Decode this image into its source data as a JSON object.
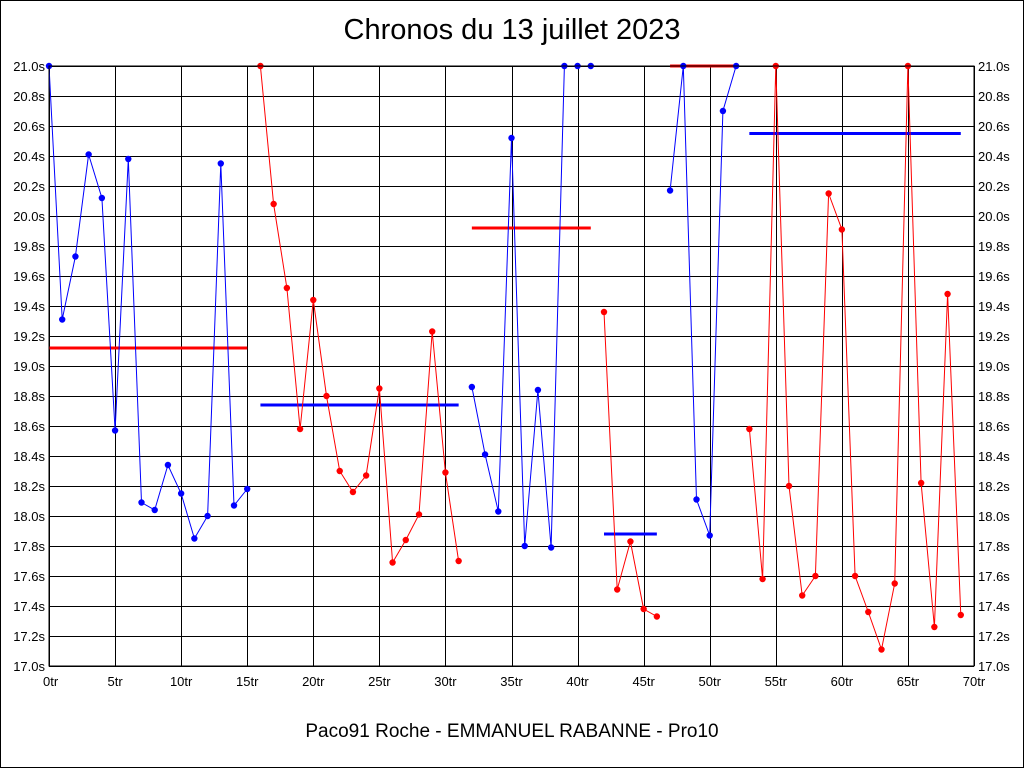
{
  "chart_data": {
    "type": "line",
    "title": "Chronos du 13 juillet 2023",
    "footer": "Paco91 Roche - EMMANUEL RABANNE - Pro10",
    "xlim": [
      0,
      70
    ],
    "ylim": [
      17.0,
      21.0
    ],
    "x_ticks": [
      0,
      5,
      10,
      15,
      20,
      25,
      30,
      35,
      40,
      45,
      50,
      55,
      60,
      65,
      70
    ],
    "x_tick_labels": [
      "0tr",
      "5tr",
      "10tr",
      "15tr",
      "20tr",
      "25tr",
      "30tr",
      "35tr",
      "40tr",
      "45tr",
      "50tr",
      "55tr",
      "60tr",
      "65tr",
      "70tr"
    ],
    "y_ticks": [
      17.0,
      17.2,
      17.4,
      17.6,
      17.8,
      18.0,
      18.2,
      18.4,
      18.6,
      18.8,
      19.0,
      19.2,
      19.4,
      19.6,
      19.8,
      20.0,
      20.2,
      20.4,
      20.6,
      20.8,
      21.0
    ],
    "y_tick_labels": [
      "17.0s",
      "17.2s",
      "17.4s",
      "17.6s",
      "17.8s",
      "18.0s",
      "18.2s",
      "18.4s",
      "18.6s",
      "18.8s",
      "19.0s",
      "19.2s",
      "19.4s",
      "19.6s",
      "19.8s",
      "20.0s",
      "20.2s",
      "20.4s",
      "20.6s",
      "20.8s",
      "21.0s"
    ],
    "grid": true,
    "colors": {
      "blue": "#0000ff",
      "red": "#ff0000"
    },
    "series": [
      {
        "color": "#0000ff",
        "x": [
          0,
          1,
          2,
          3,
          4,
          5,
          6,
          7,
          8,
          9,
          10,
          11,
          12,
          13,
          14,
          15
        ],
        "y": [
          21.0,
          19.31,
          19.73,
          20.41,
          20.12,
          18.57,
          20.38,
          18.09,
          18.04,
          18.34,
          18.15,
          17.85,
          18.0,
          20.35,
          18.07,
          18.18
        ]
      },
      {
        "color": "#ff0000",
        "x": [
          16,
          17,
          18,
          19,
          20,
          21,
          22,
          23,
          24,
          25,
          26,
          27,
          28,
          29,
          30,
          31
        ],
        "y": [
          21.0,
          20.08,
          19.52,
          18.58,
          19.44,
          18.8,
          18.3,
          18.16,
          18.27,
          18.85,
          17.69,
          17.84,
          18.01,
          19.23,
          18.29,
          17.7
        ]
      },
      {
        "color": "#0000ff",
        "x": [
          32,
          33,
          34,
          35,
          36,
          37,
          38,
          39,
          40,
          41
        ],
        "y": [
          18.86,
          18.41,
          18.03,
          20.52,
          17.8,
          18.84,
          17.79,
          21.0,
          21.0,
          21.0
        ]
      },
      {
        "color": "#ff0000",
        "x": [
          42,
          43,
          44,
          45,
          46
        ],
        "y": [
          19.36,
          17.51,
          17.83,
          17.38,
          17.33
        ]
      },
      {
        "color": "#0000ff",
        "x": [
          47,
          48,
          49,
          50,
          51,
          52
        ],
        "y": [
          20.17,
          21.0,
          18.11,
          17.87,
          20.7,
          21.0
        ]
      },
      {
        "color": "#ff0000",
        "x": [
          53,
          54,
          55,
          56,
          57,
          58,
          59,
          60,
          61,
          62,
          63,
          64,
          65,
          66,
          67,
          68,
          69
        ],
        "y": [
          18.58,
          17.58,
          21.0,
          18.2,
          17.47,
          17.6,
          20.15,
          19.91,
          17.6,
          17.36,
          17.11,
          17.55,
          21.0,
          18.22,
          17.26,
          19.48,
          17.34
        ]
      }
    ],
    "mean_lines": [
      {
        "color": "#ff0000",
        "x_start": 0,
        "x_end": 15,
        "y": 19.12
      },
      {
        "color": "#0000ff",
        "x_start": 16,
        "x_end": 31,
        "y": 18.74
      },
      {
        "color": "#ff0000",
        "x_start": 32,
        "x_end": 41,
        "y": 19.92
      },
      {
        "color": "#0000ff",
        "x_start": 42,
        "x_end": 46,
        "y": 17.88
      },
      {
        "color": "#ff0000",
        "x_start": 47,
        "x_end": 52,
        "y": 21.0
      },
      {
        "color": "#0000ff",
        "x_start": 53,
        "x_end": 69,
        "y": 20.55
      }
    ]
  }
}
